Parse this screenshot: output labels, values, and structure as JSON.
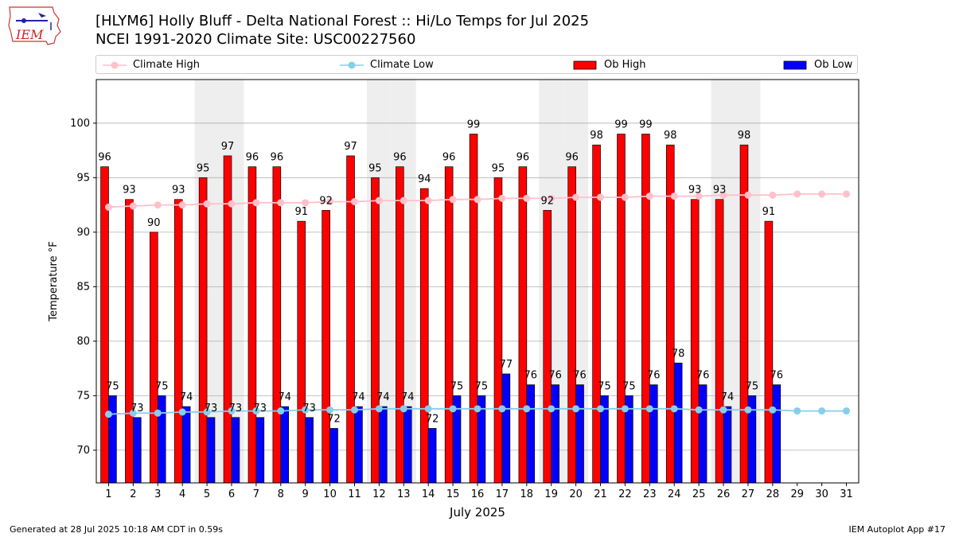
{
  "header": {
    "title_line1": "[HLYM6] Holly Bluff - Delta National Forest :: Hi/Lo Temps for Jul 2025",
    "title_line2": "NCEI 1991-2020 Climate Site: USC00227560",
    "logo_text": "IEM"
  },
  "colors": {
    "ob_high": "#ff0000",
    "ob_low": "#0000ff",
    "climate_high": "#ffc0cb",
    "climate_low": "#87ceeb",
    "weekend_shade": "#eeeeee",
    "grid": "#b0b0b0"
  },
  "legend": [
    {
      "label": "Climate High",
      "kind": "line",
      "color": "#ffc0cb"
    },
    {
      "label": "Climate Low",
      "kind": "line",
      "color": "#87ceeb"
    },
    {
      "label": "Ob High",
      "kind": "bar",
      "color": "#ff0000"
    },
    {
      "label": "Ob Low",
      "kind": "bar",
      "color": "#0000ff"
    }
  ],
  "chart_data": {
    "type": "bar",
    "title": "[HLYM6] Holly Bluff - Delta National Forest :: Hi/Lo Temps for Jul 2025",
    "subtitle": "NCEI 1991-2020 Climate Site: USC00227560",
    "xlabel": "July 2025",
    "ylabel": "Temperature °F",
    "categories": [
      "1",
      "2",
      "3",
      "4",
      "5",
      "6",
      "7",
      "8",
      "9",
      "10",
      "11",
      "12",
      "13",
      "14",
      "15",
      "16",
      "17",
      "18",
      "19",
      "20",
      "21",
      "22",
      "23",
      "24",
      "25",
      "26",
      "27",
      "28",
      "29",
      "30",
      "31"
    ],
    "xlim": [
      1,
      31
    ],
    "ylim": [
      67,
      104
    ],
    "yticks": [
      70,
      75,
      80,
      85,
      90,
      95,
      100
    ],
    "grid": "horizontal",
    "legend_position": "top",
    "weekend_shaded_days": [
      5,
      6,
      12,
      13,
      19,
      20,
      26,
      27
    ],
    "series": [
      {
        "name": "Ob High",
        "kind": "bar",
        "values": [
          96,
          93,
          90,
          93,
          95,
          97,
          96,
          96,
          91,
          92,
          97,
          95,
          96,
          94,
          96,
          99,
          95,
          96,
          92,
          96,
          98,
          99,
          99,
          98,
          93,
          93,
          98,
          91,
          null,
          null,
          null
        ]
      },
      {
        "name": "Ob Low",
        "kind": "bar",
        "values": [
          75,
          73,
          75,
          74,
          73,
          73,
          73,
          74,
          73,
          72,
          74,
          74,
          74,
          72,
          75,
          75,
          77,
          76,
          76,
          76,
          75,
          75,
          76,
          78,
          76,
          74,
          75,
          76,
          null,
          null,
          null
        ]
      },
      {
        "name": "Climate High",
        "kind": "line",
        "values": [
          92.3,
          92.4,
          92.5,
          92.5,
          92.6,
          92.6,
          92.7,
          92.7,
          92.7,
          92.8,
          92.8,
          92.9,
          92.9,
          92.9,
          93.0,
          93.0,
          93.1,
          93.1,
          93.1,
          93.2,
          93.2,
          93.2,
          93.3,
          93.3,
          93.3,
          93.4,
          93.4,
          93.4,
          93.5,
          93.5,
          93.5
        ]
      },
      {
        "name": "Climate Low",
        "kind": "line",
        "values": [
          73.3,
          73.4,
          73.4,
          73.5,
          73.5,
          73.6,
          73.6,
          73.6,
          73.7,
          73.7,
          73.7,
          73.8,
          73.8,
          73.8,
          73.8,
          73.8,
          73.8,
          73.8,
          73.8,
          73.8,
          73.8,
          73.8,
          73.8,
          73.8,
          73.7,
          73.7,
          73.7,
          73.7,
          73.6,
          73.6,
          73.6
        ]
      }
    ]
  },
  "footer": {
    "generated": "Generated at 28 Jul 2025 10:18 AM CDT in 0.59s",
    "app": "IEM Autoplot App #17"
  }
}
